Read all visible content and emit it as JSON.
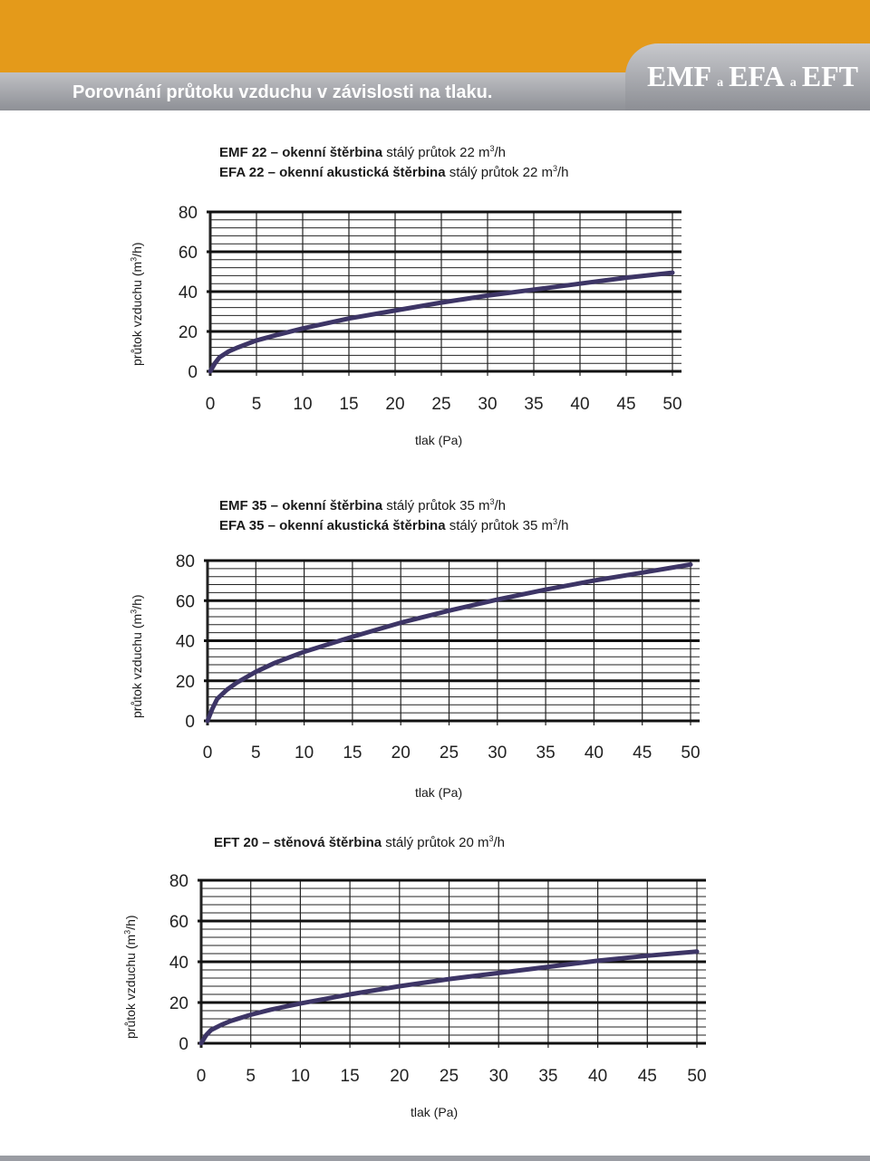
{
  "header": {
    "title": "Porovnání průtoku vzduchu v závislosti na tlaku.",
    "brand_big_1": "EMF",
    "brand_small_1": "a",
    "brand_big_2": "EFA",
    "brand_small_2": "a",
    "brand_big_3": "EFT",
    "colors": {
      "orange": "#e49a1a",
      "grey": "#8e9096"
    }
  },
  "chart_data": [
    {
      "type": "line",
      "caption_lines": [
        {
          "bold": "EMF 22 – okenní štěrbina",
          "normal": " stálý průtok 22 m",
          "sup": "3",
          "tail": "/h"
        },
        {
          "bold": "EFA 22 – okenní akustická štěrbina",
          "normal": " stálý průtok 22 m",
          "sup": "3",
          "tail": "/h"
        }
      ],
      "ylabel_main": "průtok vzduchu (m",
      "ylabel_sup": "3",
      "ylabel_tail": "/h)",
      "xlabel": "tlak (Pa)",
      "xlim": [
        0,
        50
      ],
      "ylim": [
        0,
        80
      ],
      "xticks": [
        0,
        5,
        10,
        15,
        20,
        25,
        30,
        35,
        40,
        45,
        50
      ],
      "yticks": [
        0,
        20,
        40,
        60,
        80
      ],
      "grid": true,
      "line_color": "#3d3566",
      "series": [
        {
          "x": [
            0,
            0.5,
            1,
            2,
            3,
            5,
            7,
            10,
            15,
            20,
            25,
            30,
            35,
            40,
            45,
            50
          ],
          "y": [
            0,
            4,
            7,
            10,
            12,
            15.5,
            18,
            21.5,
            26.5,
            30.5,
            34.5,
            38,
            41,
            44,
            47,
            49.5
          ]
        }
      ]
    },
    {
      "type": "line",
      "caption_lines": [
        {
          "bold": "EMF 35 – okenní štěrbina",
          "normal": " stálý průtok 35 m",
          "sup": "3",
          "tail": "/h"
        },
        {
          "bold": "EFA 35 – okenní akustická štěrbina",
          "normal": " stálý průtok 35 m",
          "sup": "3",
          "tail": "/h"
        }
      ],
      "ylabel_main": "průtok vzduchu (m",
      "ylabel_sup": "3",
      "ylabel_tail": "/h)",
      "xlabel": "tlak (Pa)",
      "xlim": [
        0,
        50
      ],
      "ylim": [
        0,
        80
      ],
      "xticks": [
        0,
        5,
        10,
        15,
        20,
        25,
        30,
        35,
        40,
        45,
        50
      ],
      "yticks": [
        0,
        20,
        40,
        60,
        80
      ],
      "grid": true,
      "line_color": "#3d3566",
      "series": [
        {
          "x": [
            0,
            0.5,
            1,
            2,
            3,
            5,
            7,
            10,
            15,
            20,
            25,
            30,
            35,
            40,
            45,
            50
          ],
          "y": [
            0,
            6,
            11,
            15.5,
            19,
            24.5,
            29,
            34.5,
            42,
            49,
            55,
            60.5,
            65.5,
            70,
            74,
            78
          ]
        }
      ]
    },
    {
      "type": "line",
      "caption_lines": [
        {
          "bold": "EFT 20 – stěnová štěrbina",
          "normal": " stálý průtok 20 m",
          "sup": "3",
          "tail": "/h"
        }
      ],
      "ylabel_main": "průtok vzduchu (m",
      "ylabel_sup": "3",
      "ylabel_tail": "/h)",
      "xlabel": "tlak (Pa)",
      "xlim": [
        0,
        50
      ],
      "ylim": [
        0,
        80
      ],
      "xticks": [
        0,
        5,
        10,
        15,
        20,
        25,
        30,
        35,
        40,
        45,
        50
      ],
      "yticks": [
        0,
        20,
        40,
        60,
        80
      ],
      "grid": true,
      "line_color": "#3d3566",
      "series": [
        {
          "x": [
            0,
            0.5,
            1,
            2,
            3,
            5,
            7,
            10,
            15,
            20,
            25,
            30,
            35,
            40,
            45,
            50
          ],
          "y": [
            0,
            4,
            6.5,
            9,
            11,
            14,
            16.5,
            19.5,
            24,
            28,
            31.5,
            34.5,
            37.5,
            40.5,
            43,
            45
          ]
        }
      ]
    }
  ]
}
